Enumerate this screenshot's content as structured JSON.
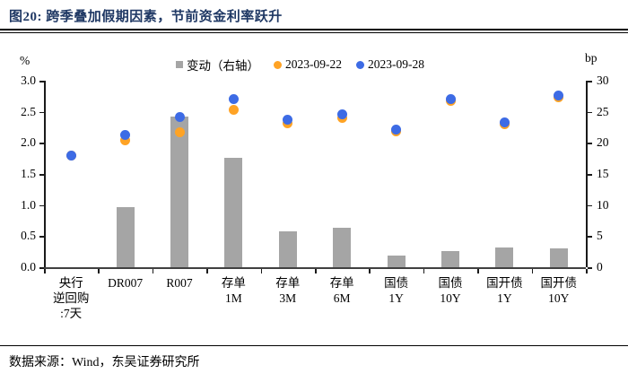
{
  "header": {
    "title": "图20:  跨季叠加假期因素，节前资金利率跃升"
  },
  "footer": {
    "source": "数据来源：Wind，东吴证券研究所"
  },
  "chart_data": {
    "type": "combo-bar-scatter",
    "title": "跨季叠加假期因素，节前资金利率跃升",
    "left_axis": {
      "unit": "%",
      "min": 0,
      "max": 3,
      "ticks": [
        "3.0",
        "2.5",
        "2.0",
        "1.5",
        "1.0",
        "0.5",
        "0.0"
      ]
    },
    "right_axis": {
      "unit": "bp",
      "min": 0,
      "max": 30,
      "ticks": [
        "30",
        "25",
        "20",
        "15",
        "10",
        "5",
        "0"
      ]
    },
    "grid": "off",
    "legend_position": "top",
    "categories": [
      "央行逆回购:7天",
      "DR007",
      "R007",
      "存单1M",
      "存单3M",
      "存单6M",
      "国债1Y",
      "国债10Y",
      "国开债1Y",
      "国开债10Y"
    ],
    "category_lines": [
      [
        "央行",
        "逆回购",
        ":7天"
      ],
      [
        "DR007"
      ],
      [
        "R007"
      ],
      [
        "存单",
        "1M"
      ],
      [
        "存单",
        "3M"
      ],
      [
        "存单",
        "6M"
      ],
      [
        "国债",
        "1Y"
      ],
      [
        "国债",
        "10Y"
      ],
      [
        "国开债",
        "1Y"
      ],
      [
        "国开债",
        "10Y"
      ]
    ],
    "series": [
      {
        "name": "变动（右轴）",
        "type": "bar",
        "axis": "right",
        "color": "#a5a5a5",
        "values": [
          0,
          9.7,
          24.3,
          17.6,
          5.8,
          6.4,
          1.9,
          2.6,
          3.2,
          3.1
        ]
      },
      {
        "name": "2023-09-22",
        "type": "scatter",
        "axis": "left",
        "color": "#ffa325",
        "values": [
          1.8,
          2.04,
          2.17,
          2.53,
          2.31,
          2.4,
          2.19,
          2.67,
          2.3,
          2.73
        ]
      },
      {
        "name": "2023-09-28",
        "type": "scatter",
        "axis": "left",
        "color": "#3d6be5",
        "values": [
          1.8,
          2.13,
          2.42,
          2.71,
          2.37,
          2.46,
          2.21,
          2.7,
          2.33,
          2.76
        ]
      }
    ]
  }
}
